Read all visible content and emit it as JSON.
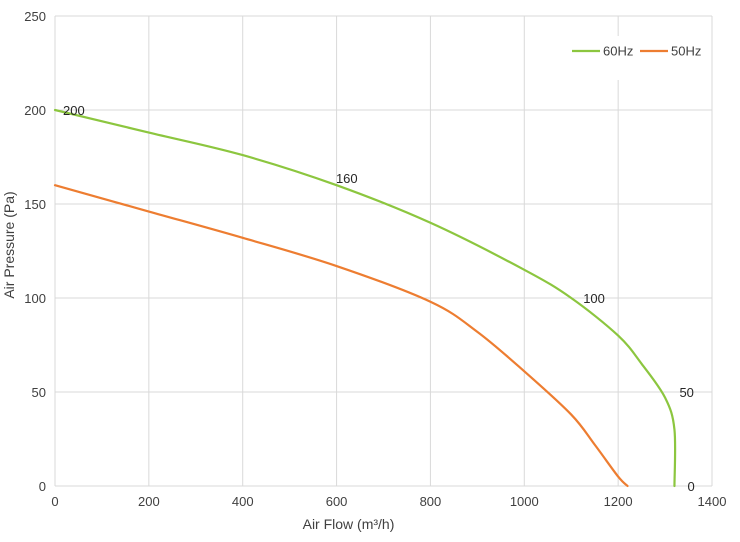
{
  "chart_data": {
    "type": "line",
    "xlabel": "Air Flow  (m³/h)",
    "ylabel": "Air Pressure  (Pa)",
    "xlim": [
      0,
      1400
    ],
    "ylim": [
      0,
      250
    ],
    "x_ticks": [
      0,
      200,
      400,
      600,
      800,
      1000,
      1200,
      1400
    ],
    "y_ticks": [
      0,
      50,
      100,
      150,
      200,
      250
    ],
    "grid": true,
    "legend_position": "top-right",
    "series": [
      {
        "name": "60Hz",
        "color": "#8cc63f",
        "points": [
          [
            0,
            200
          ],
          [
            200,
            188
          ],
          [
            400,
            176
          ],
          [
            600,
            160
          ],
          [
            800,
            140
          ],
          [
            1000,
            115
          ],
          [
            1100,
            100
          ],
          [
            1200,
            80
          ],
          [
            1250,
            65
          ],
          [
            1300,
            47
          ],
          [
            1320,
            30
          ],
          [
            1320,
            0
          ]
        ]
      },
      {
        "name": "50Hz",
        "color": "#ed7d31",
        "points": [
          [
            0,
            160
          ],
          [
            200,
            146
          ],
          [
            400,
            132
          ],
          [
            600,
            117
          ],
          [
            800,
            98
          ],
          [
            900,
            82
          ],
          [
            1000,
            61
          ],
          [
            1100,
            38
          ],
          [
            1150,
            22
          ],
          [
            1200,
            5
          ],
          [
            1220,
            0
          ]
        ]
      }
    ],
    "point_labels": [
      {
        "x": 0,
        "y": 200,
        "text": "200"
      },
      {
        "x": 620,
        "y": 160,
        "text": "160"
      },
      {
        "x": 1100,
        "y": 100,
        "text": "100"
      },
      {
        "x": 1320,
        "y": 50,
        "text": "50"
      },
      {
        "x": 1320,
        "y": 0,
        "text": "0"
      }
    ]
  }
}
